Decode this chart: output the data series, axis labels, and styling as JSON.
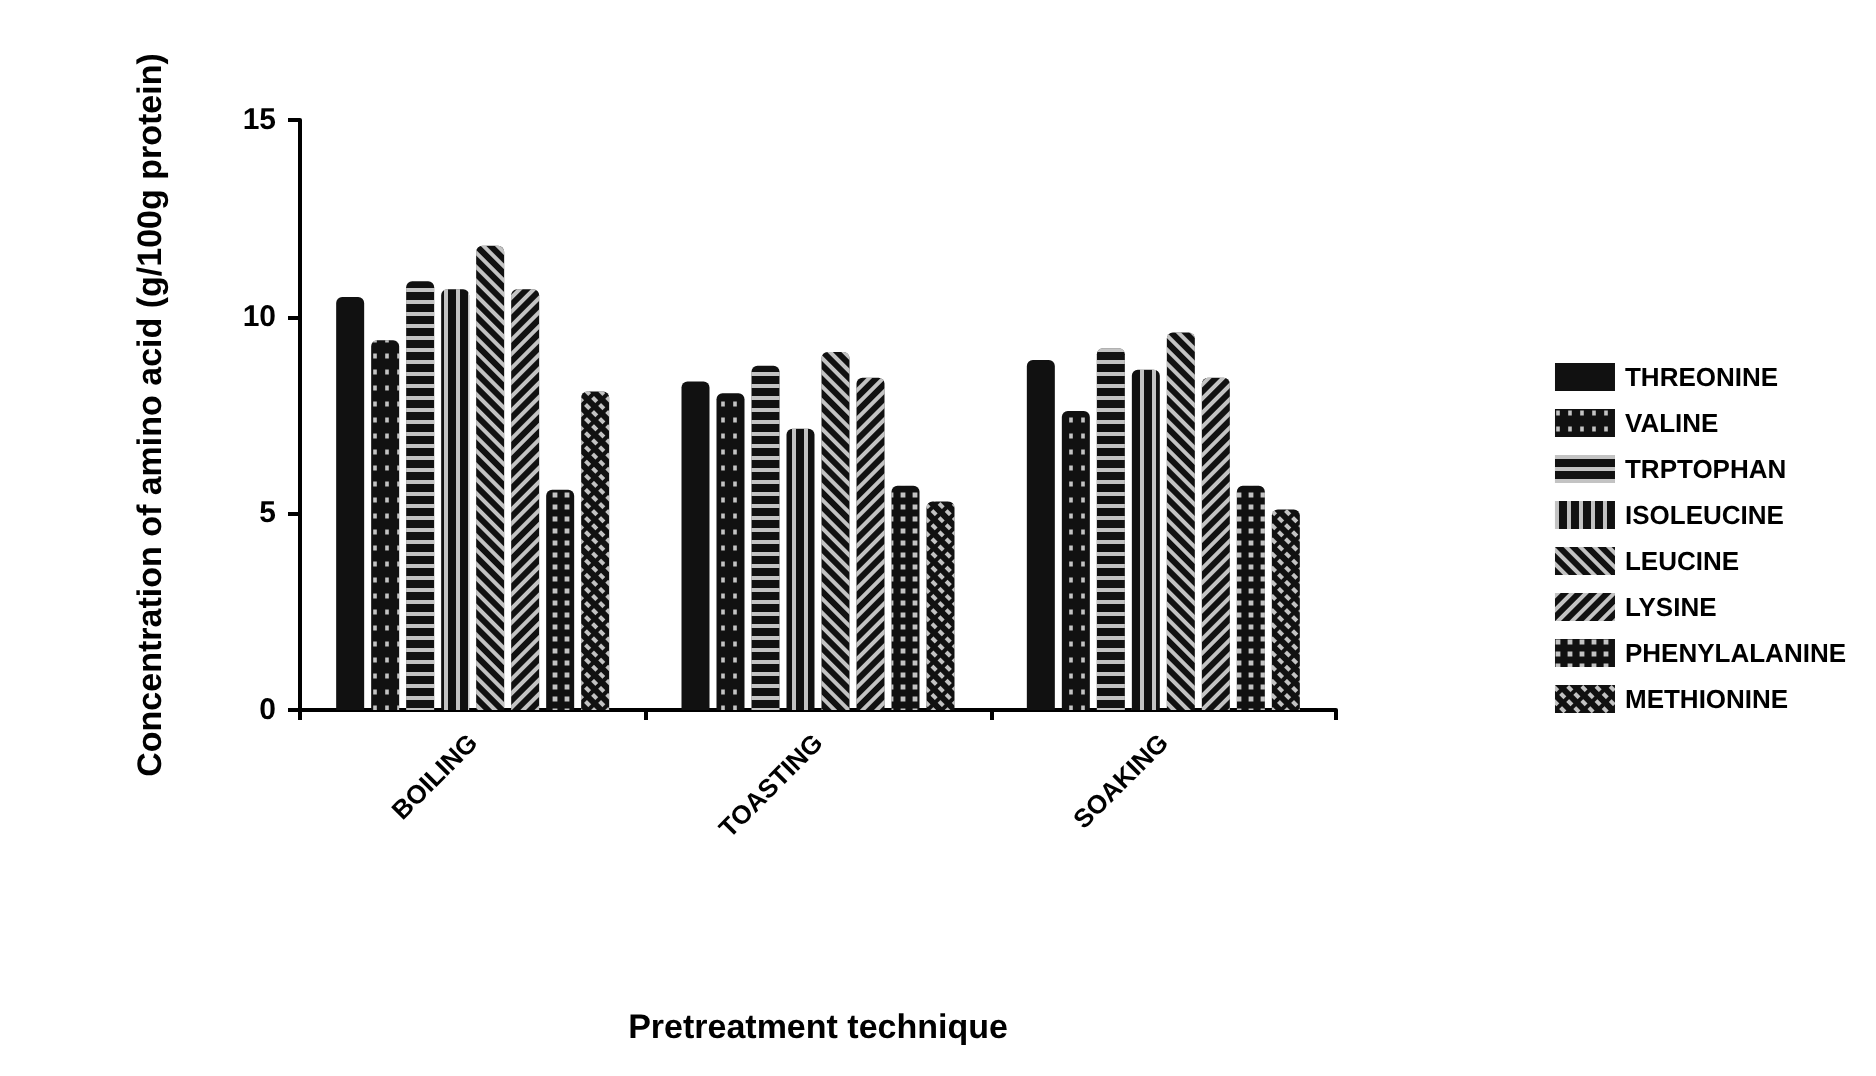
{
  "chart_data": {
    "type": "bar",
    "xlabel": "Pretreatment technique",
    "ylabel": "Concentration of amino acid (g/100g protein)",
    "categories": [
      "BOILING",
      "TOASTING",
      "SOAKING"
    ],
    "ylim": [
      0,
      15
    ],
    "yticks": [
      0,
      5,
      10,
      15
    ],
    "grid": false,
    "legend": "right",
    "series": [
      {
        "name": "THREONINE",
        "color": "#111111",
        "values": [
          10.5,
          8.35,
          8.9
        ]
      },
      {
        "name": "VALINE",
        "color": "#111111",
        "values": [
          9.4,
          8.05,
          7.6
        ]
      },
      {
        "name": "TRPTOPHAN",
        "color": "#111111",
        "values": [
          10.9,
          8.75,
          9.2
        ]
      },
      {
        "name": "ISOLEUCINE",
        "color": "#111111",
        "values": [
          10.7,
          7.15,
          8.65
        ]
      },
      {
        "name": "LEUCINE",
        "color": "#111111",
        "values": [
          11.8,
          9.1,
          9.6
        ]
      },
      {
        "name": "LYSINE",
        "color": "#111111",
        "values": [
          10.7,
          8.45,
          8.45
        ]
      },
      {
        "name": "PHENYLALANINE",
        "color": "#111111",
        "values": [
          5.6,
          5.7,
          5.7
        ]
      },
      {
        "name": "METHIONINE",
        "color": "#111111",
        "values": [
          8.1,
          5.3,
          5.1
        ]
      }
    ]
  }
}
